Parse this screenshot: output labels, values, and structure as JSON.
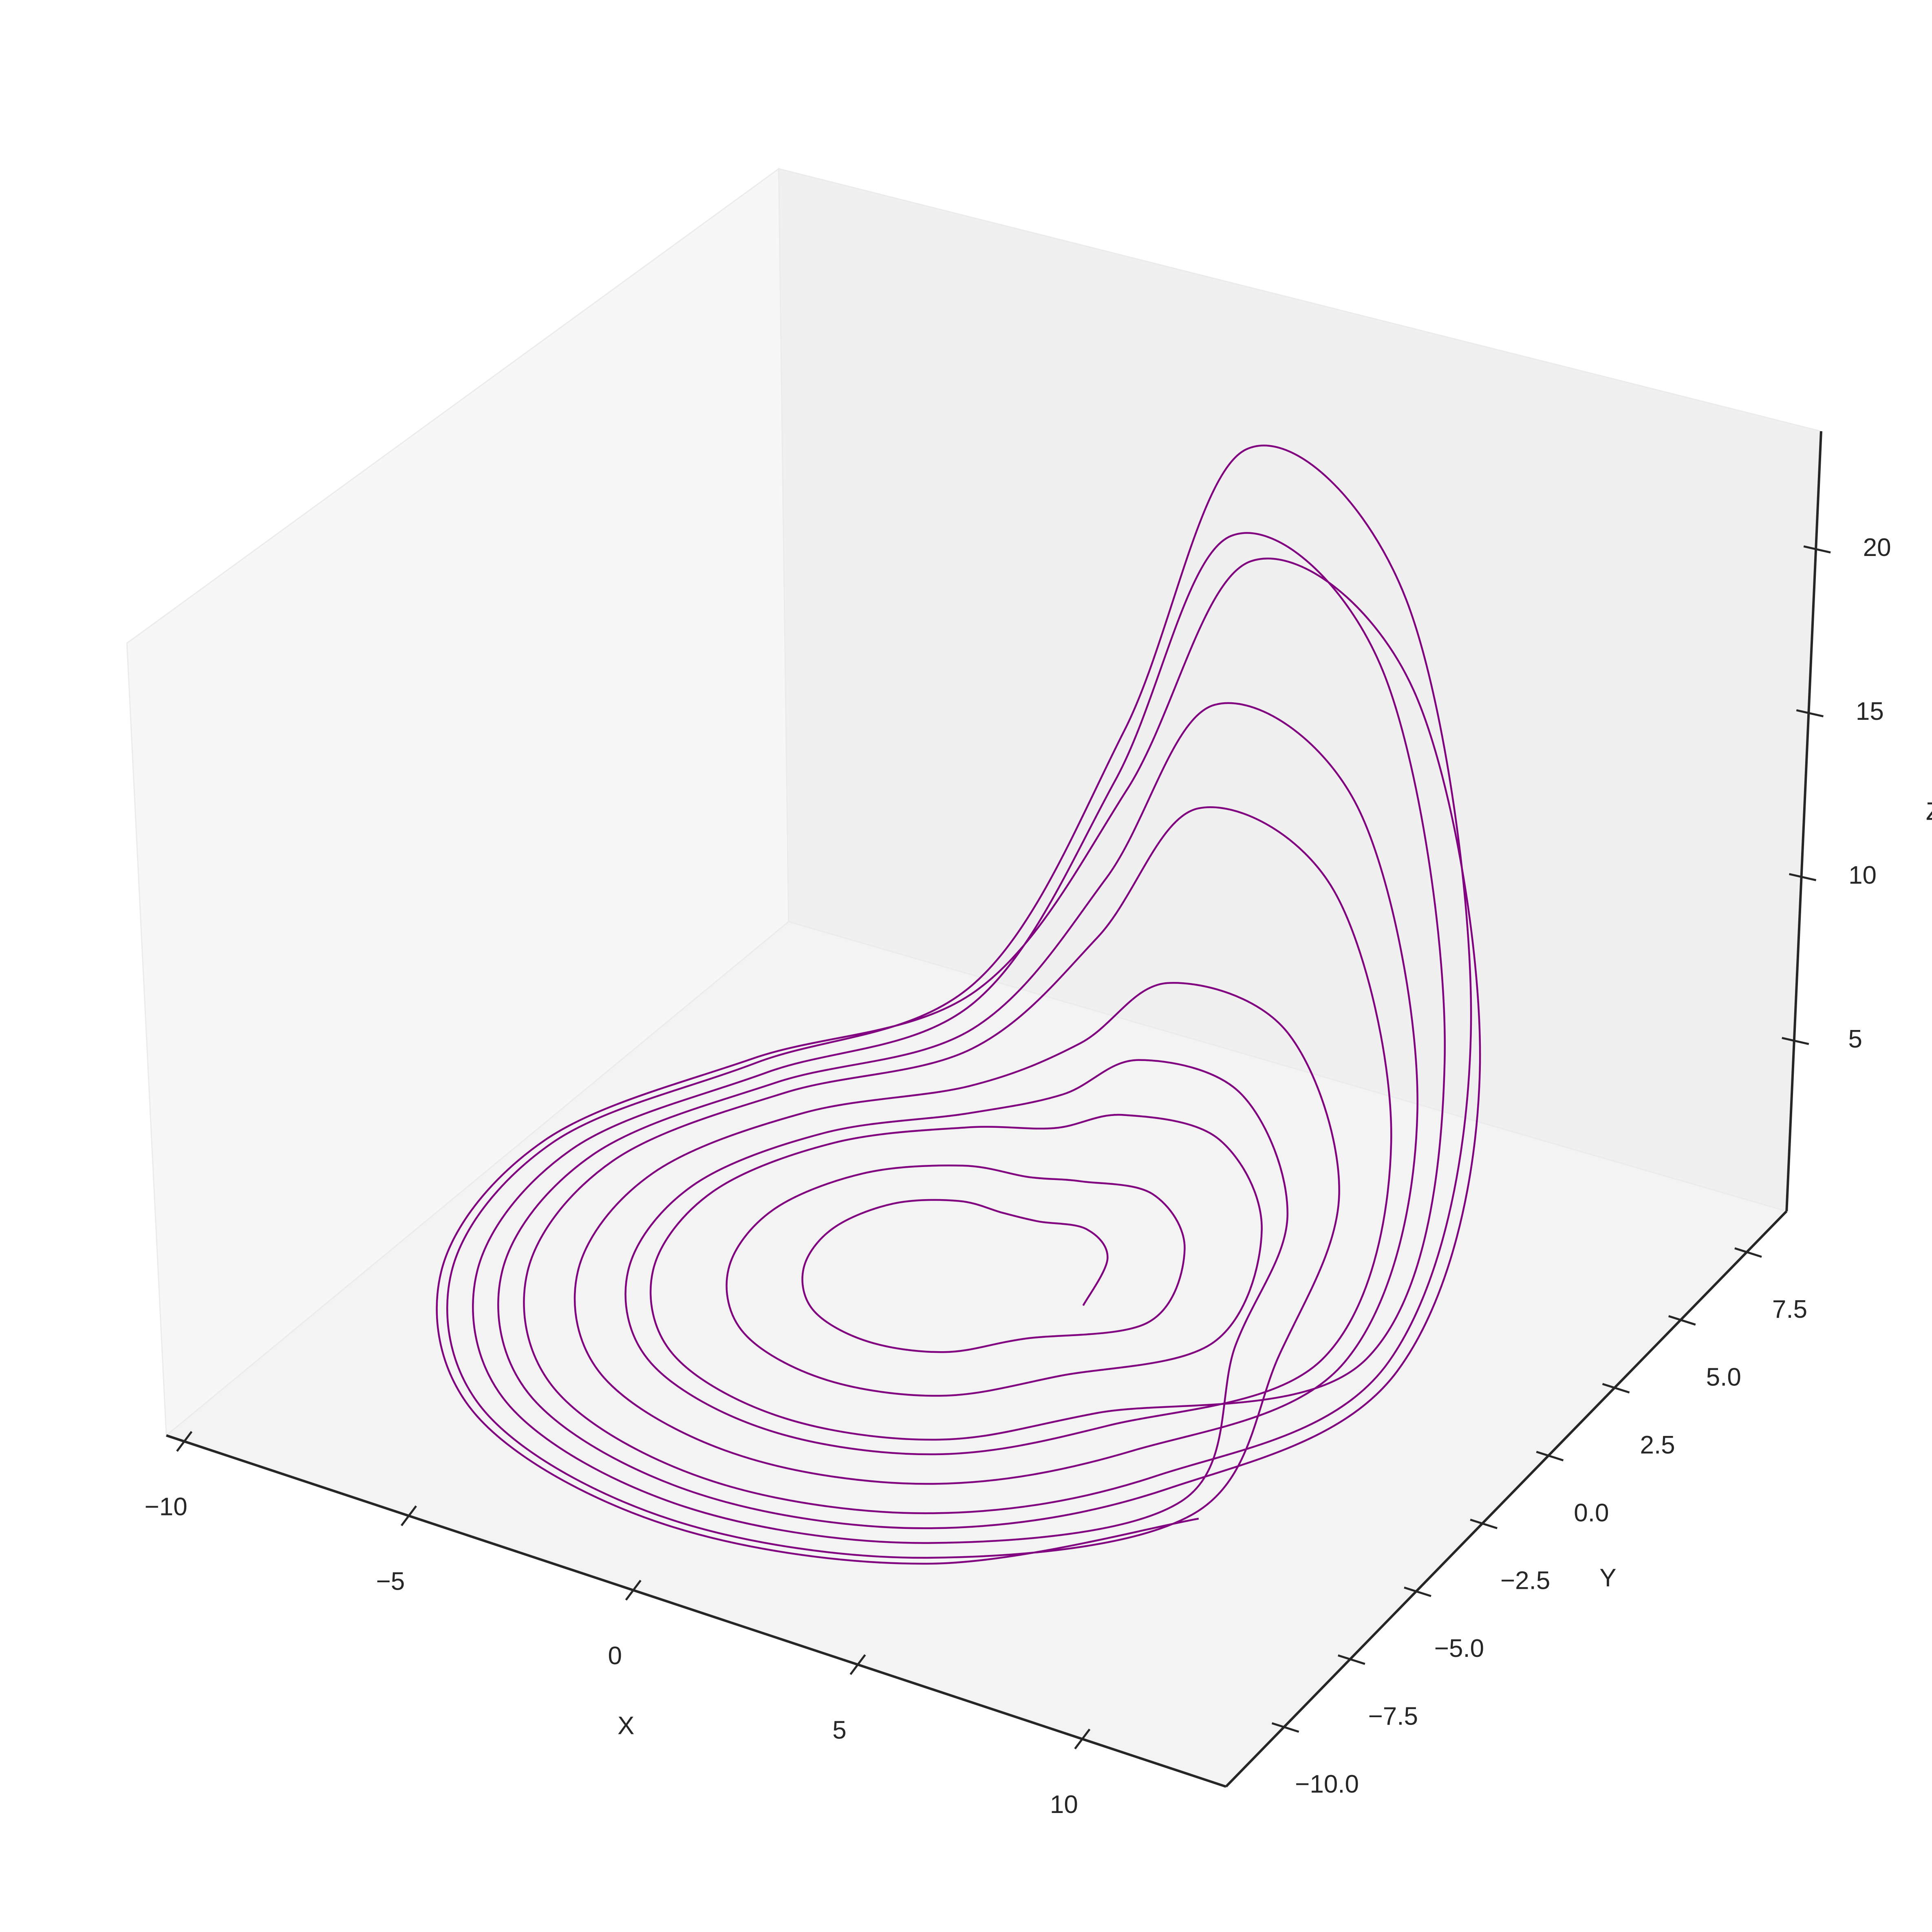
{
  "chart_data": {
    "type": "line3d",
    "color": "#800080",
    "xlabel": "X",
    "ylabel": "Y",
    "zlabel": "Z",
    "xlim": [
      -10.4,
      13.2
    ],
    "ylim": [
      -12.2,
      9.0
    ],
    "zlim": [
      -0.2,
      23.6
    ],
    "xticks": [
      {
        "value": -10,
        "label": "−10"
      },
      {
        "value": -5,
        "label": "−5"
      },
      0,
      5,
      10
    ],
    "yticks": [
      {
        "value": -10,
        "label": "−10.0"
      },
      {
        "value": -7.5,
        "label": "−7.5"
      },
      {
        "value": -5,
        "label": "−5.0"
      },
      {
        "value": -2.5,
        "label": "−2.5"
      },
      {
        "value": 0,
        "label": "0.0"
      },
      2.5,
      {
        "value": 5,
        "label": "5.0"
      },
      7.5
    ],
    "zticks": [
      5,
      10,
      15,
      20
    ],
    "x": [
      2.6,
      2.2,
      1.34,
      0.43,
      -0.4,
      -1.53,
      -2.61,
      -3.16,
      -2.89,
      -1.9,
      -0.4,
      1.1,
      2.2,
      4.1,
      3.5,
      2.21,
      0.84,
      -0.4,
      -2.09,
      -3.71,
      -4.54,
      -4.14,
      -2.65,
      -0.4,
      1.85,
      3.5,
      5.6,
      4.8,
      3.07,
      1.25,
      -0.4,
      -2.65,
      -4.82,
      -5.92,
      -5.39,
      -3.4,
      -0.4,
      2.6,
      4.8,
      9.1,
      7.83,
      5.1,
      2.21,
      -0.4,
      -3.96,
      -7.39,
      -9.14,
      -8.29,
      -5.15,
      -0.4,
      4.35,
      7.83,
      6.1,
      5.23,
      3.36,
      1.39,
      -0.4,
      -2.84,
      -5.18,
      -6.38,
      -5.8,
      -3.65,
      -0.4,
      2.85,
      5.23,
      8.1,
      6.96,
      4.52,
      1.94,
      -0.4,
      -3.59,
      -6.66,
      -8.22,
      -7.46,
      -4.65,
      -0.4,
      3.85,
      6.96,
      9.6,
      8.26,
      5.39,
      2.35,
      -0.4,
      -4.15,
      -7.76,
      -9.6,
      -8.71,
      -5.4,
      -0.4,
      4.6,
      8.26,
      7.1,
      6.1,
      3.94,
      1.66,
      -0.4,
      -3.21,
      -5.92,
      -7.3,
      -6.63,
      -4.15,
      -0.4,
      3.35,
      6.1,
      8.6,
      7.39,
      4.81,
      2.08,
      -0.4,
      -3.78,
      -7.02,
      -8.68,
      -7.88,
      -4.9,
      -0.4,
      4.1,
      7.39,
      9.8,
      8.43,
      5.51,
      2.41,
      -0.4,
      -4.23,
      -7.91,
      -9.78,
      -8.88,
      -5.5,
      -0.4,
      4.7,
      8.43
    ],
    "y": [
      -0.2,
      1.3,
      1.87,
      1.57,
      1.6,
      1.75,
      1.08,
      -0.2,
      -1.64,
      -2.8,
      -3.2,
      -2.8,
      -1.7,
      -0.2,
      2.05,
      2.9,
      2.45,
      2.5,
      2.73,
      1.71,
      -0.2,
      -2.36,
      -4.1,
      -4.7,
      -4.1,
      -2.45,
      -0.2,
      2.8,
      3.93,
      3.33,
      3.4,
      3.7,
      2.35,
      -0.2,
      -3.08,
      -5.4,
      -6.2,
      -5.4,
      -3.2,
      -0.2,
      4.55,
      6.35,
      5.4,
      5.5,
      5.98,
      3.84,
      -0.2,
      -4.76,
      -8.43,
      -9.7,
      -8.43,
      -4.95,
      -0.2,
      3.05,
      4.28,
      3.63,
      3.7,
      4.03,
      2.56,
      -0.2,
      -3.32,
      -5.83,
      -6.7,
      -5.83,
      -3.45,
      -0.2,
      4.05,
      5.66,
      4.81,
      4.9,
      5.33,
      3.41,
      -0.2,
      -4.28,
      -7.56,
      -8.7,
      -7.56,
      -4.45,
      -0.2,
      4.8,
      6.69,
      5.69,
      5.8,
      6.3,
      4.05,
      -0.2,
      -5.0,
      -8.86,
      -10.2,
      -8.86,
      -5.2,
      -0.2,
      3.55,
      4.97,
      4.22,
      4.3,
      4.68,
      2.99,
      -0.2,
      -3.8,
      -6.7,
      -7.7,
      -6.7,
      -3.95,
      -0.2,
      4.3,
      6.0,
      5.1,
      5.2,
      5.65,
      3.63,
      -0.2,
      -4.52,
      -8.0,
      -9.2,
      -8.0,
      -4.7,
      -0.2,
      4.9,
      6.83,
      5.81,
      5.92,
      6.43,
      4.14,
      -0.2,
      -5.1,
      -9.03,
      -10.4,
      -9.03,
      -5.3
    ],
    "z": [
      0.2,
      0.3,
      0.4,
      0.5,
      0.4,
      0.2,
      0.2,
      0.2,
      0.2,
      0.2,
      0.2,
      0.2,
      0.2,
      0.3,
      0.5,
      1.0,
      1.2,
      0.8,
      0.3,
      0.2,
      0.2,
      0.2,
      0.2,
      0.2,
      0.2,
      0.2,
      0.3,
      1.0,
      2.2,
      2.7,
      1.6,
      0.5,
      0.2,
      0.2,
      0.2,
      0.2,
      0.2,
      0.2,
      0.2,
      1.2,
      5.9,
      15.4,
      19.2,
      10.7,
      2.1,
      0.2,
      0.2,
      0.2,
      0.2,
      0.2,
      0.2,
      0.2,
      0.4,
      1.4,
      3.4,
      4.2,
      2.4,
      0.6,
      0.2,
      0.2,
      0.2,
      0.2,
      0.2,
      0.2,
      0.2,
      0.8,
      3.5,
      9.0,
      11.2,
      6.3,
      1.3,
      0.2,
      0.2,
      0.2,
      0.2,
      0.2,
      0.2,
      0.2,
      1.3,
      6.7,
      17.4,
      21.7,
      12.0,
      2.4,
      0.2,
      0.2,
      0.2,
      0.2,
      0.2,
      0.2,
      0.2,
      0.5,
      2.0,
      5.0,
      6.2,
      3.5,
      0.8,
      0.2,
      0.2,
      0.2,
      0.2,
      0.2,
      0.2,
      0.2,
      0.9,
      4.4,
      11.4,
      14.2,
      7.9,
      1.6,
      0.2,
      0.2,
      0.2,
      0.2,
      0.2,
      0.2,
      0.2,
      1.1,
      5.6,
      14.6,
      18.2,
      10.1,
      2.0,
      0.2,
      0.2,
      0.2,
      0.2,
      0.2,
      0.2,
      0.2
    ]
  }
}
